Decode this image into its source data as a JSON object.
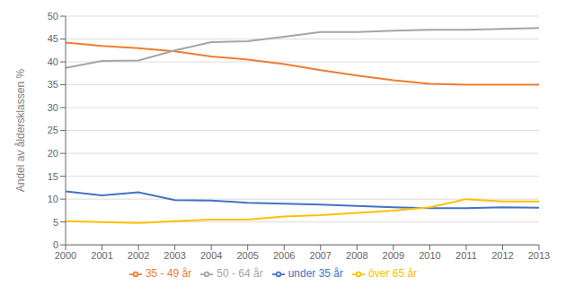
{
  "chart_data": {
    "type": "line",
    "ylabel": "Andel av åldersklassen %",
    "x": [
      2000,
      2001,
      2002,
      2003,
      2004,
      2005,
      2006,
      2007,
      2008,
      2009,
      2010,
      2011,
      2012,
      2013
    ],
    "series": [
      {
        "name": "under 35 år",
        "color": "#4472C4",
        "values": [
          11.7,
          10.8,
          11.5,
          9.8,
          9.7,
          9.2,
          9.0,
          8.8,
          8.5,
          8.2,
          8.0,
          8.0,
          8.2,
          8.1
        ]
      },
      {
        "name": "35 - 49 år",
        "color": "#ED7D31",
        "values": [
          44.2,
          43.5,
          43.0,
          42.3,
          41.2,
          40.5,
          39.5,
          38.2,
          37.0,
          36.0,
          35.2,
          35.0,
          35.0,
          35.0
        ]
      },
      {
        "name": "50 - 64 år",
        "color": "#A5A5A5",
        "values": [
          38.7,
          40.2,
          40.3,
          42.5,
          44.3,
          44.5,
          45.5,
          46.5,
          46.5,
          46.8,
          47.0,
          47.0,
          47.2,
          47.4
        ]
      },
      {
        "name": "över 65 år",
        "color": "#FFC000",
        "values": [
          5.2,
          5.0,
          4.8,
          5.2,
          5.5,
          5.5,
          6.2,
          6.5,
          7.0,
          7.5,
          8.2,
          10.0,
          9.5,
          9.5
        ]
      }
    ],
    "xlim": [
      2000,
      2013
    ],
    "xticks": [
      2000,
      2001,
      2002,
      2003,
      2004,
      2005,
      2006,
      2007,
      2008,
      2009,
      2010,
      2011,
      2012,
      2013
    ],
    "ylim": [
      0,
      50
    ],
    "yticks": [
      0,
      5,
      10,
      15,
      20,
      25,
      30,
      35,
      40,
      45,
      50
    ],
    "grid": "y",
    "legend": "bottom"
  }
}
